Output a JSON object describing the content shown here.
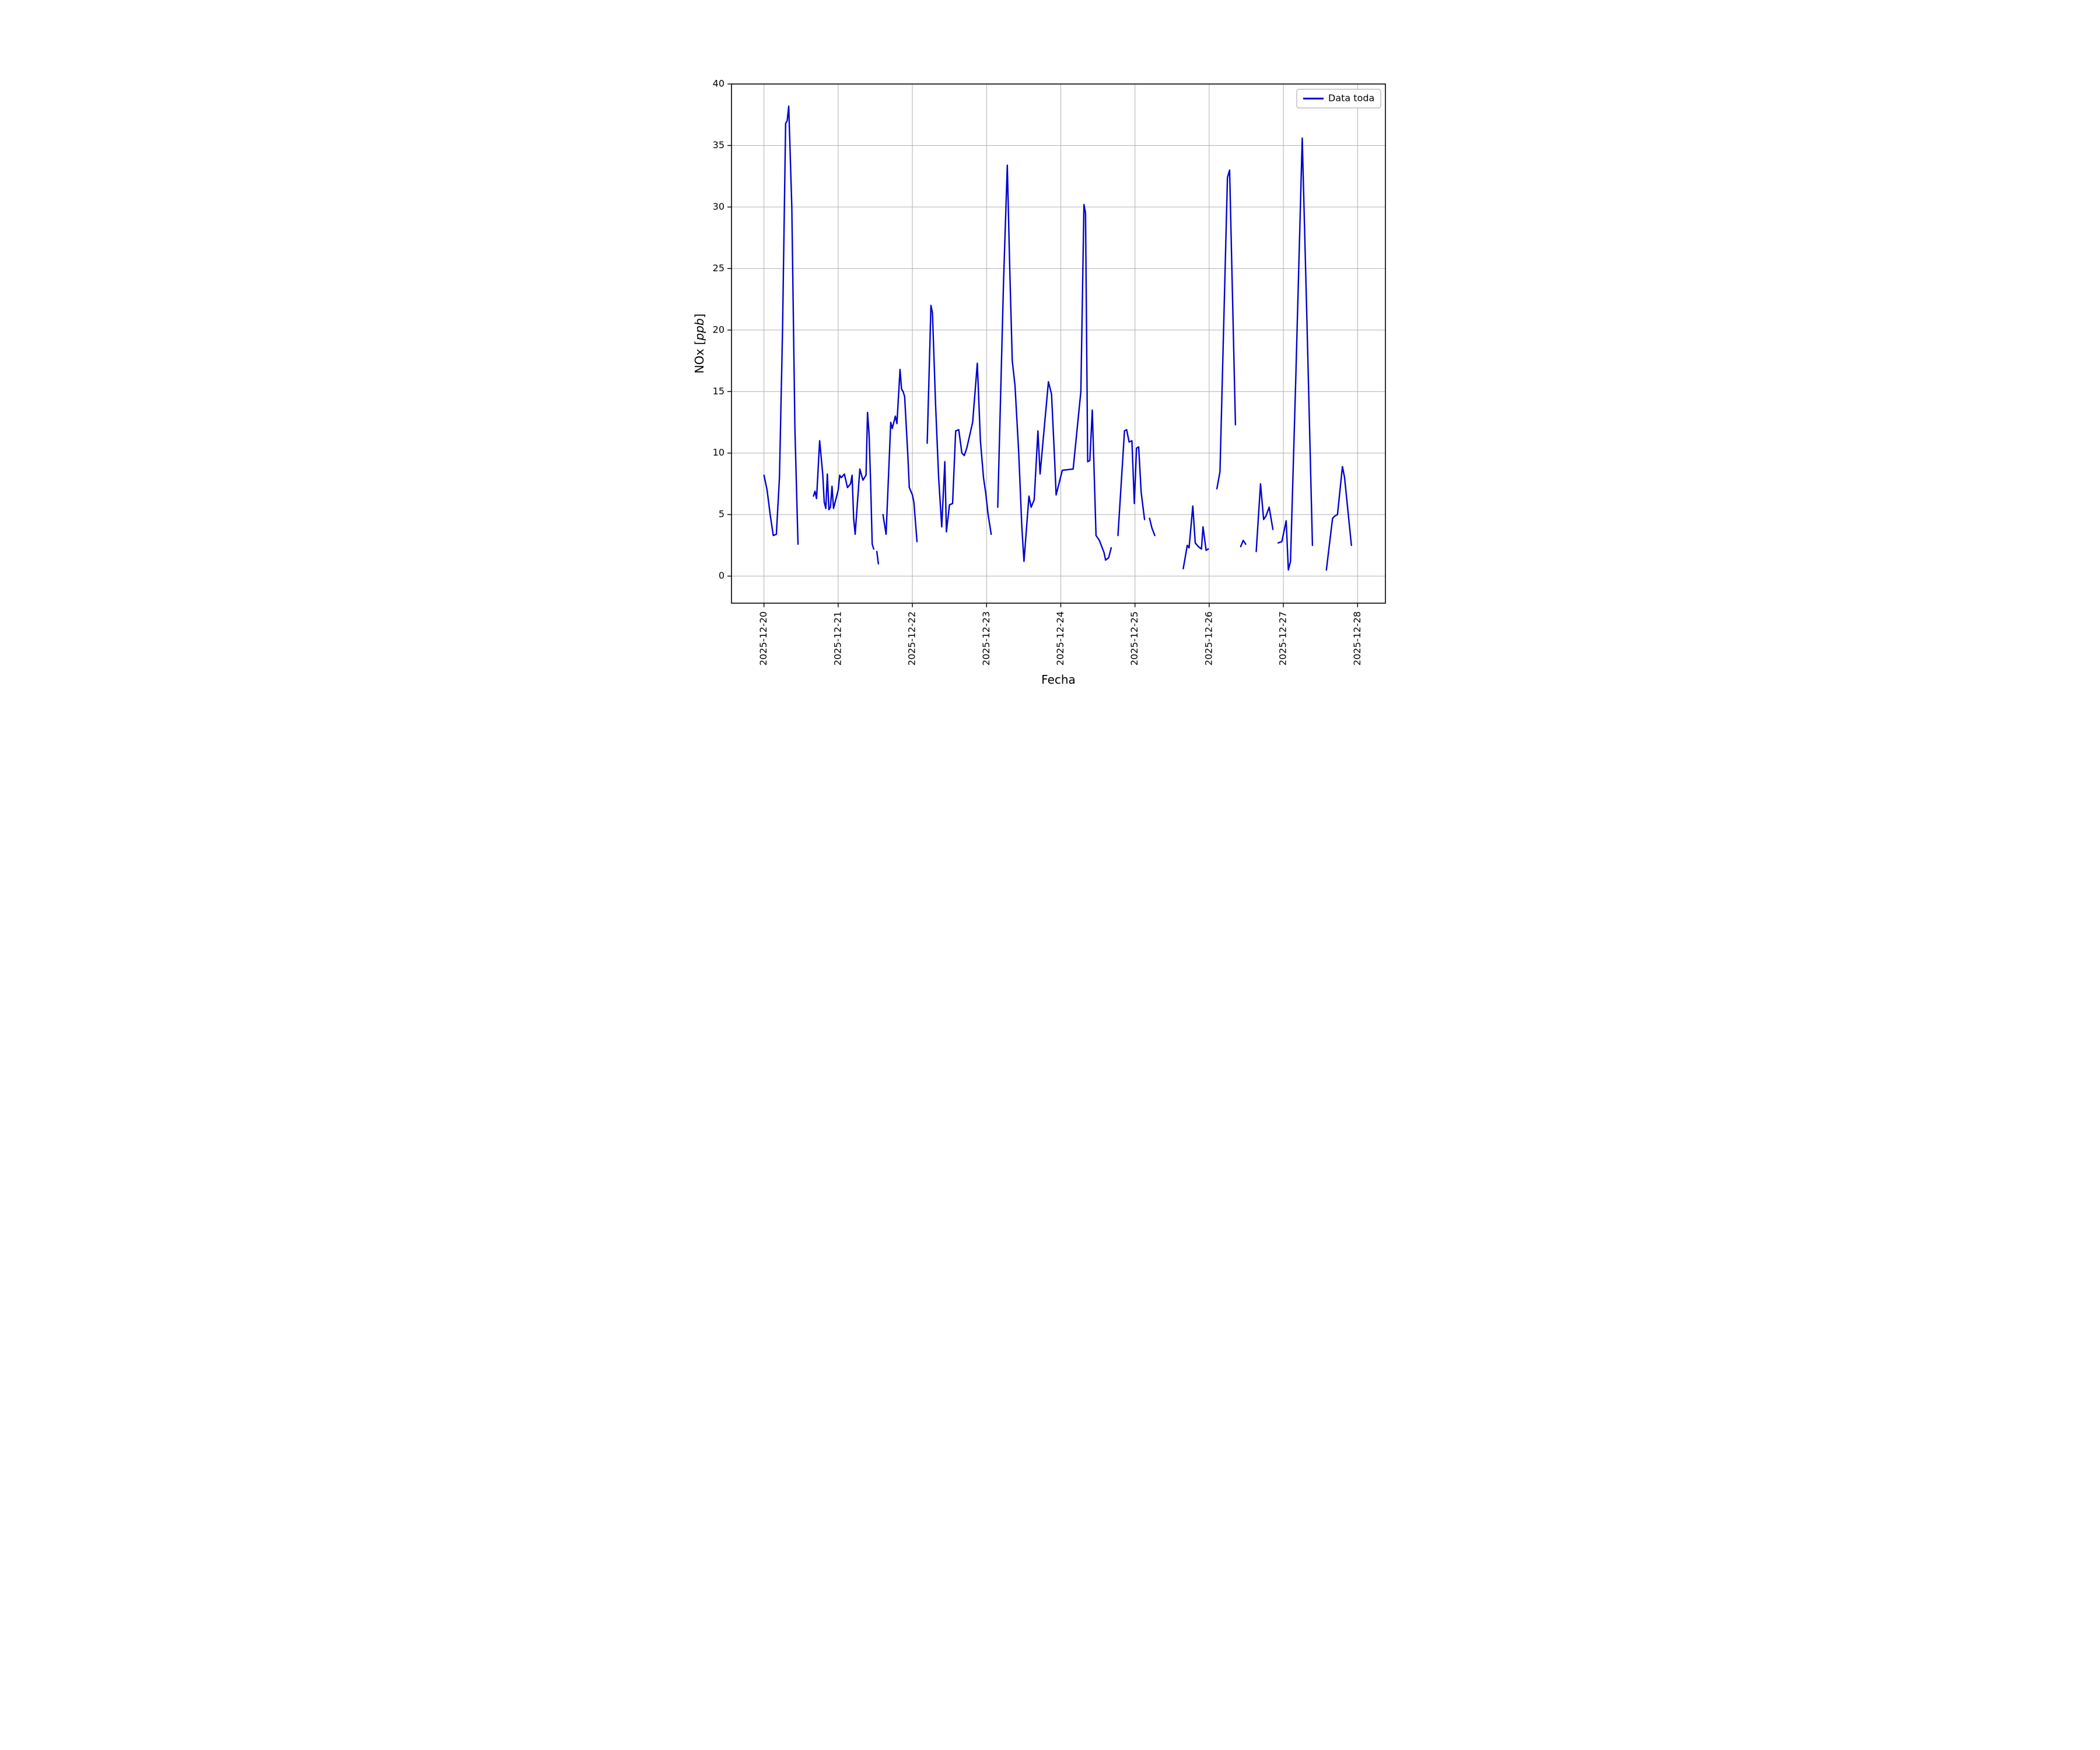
{
  "chart_data": {
    "type": "line",
    "title": "",
    "xlabel": "Fecha",
    "ylabel_prefix": "NOx [",
    "ylabel_italic": "ppb",
    "ylabel_suffix": "]",
    "legend": {
      "position": "upper right",
      "entries": [
        {
          "label": "Data toda",
          "color": "#0000cd"
        }
      ]
    },
    "grid": true,
    "grid_color": "#b0b0b0",
    "axes_edge_color": "#000000",
    "line_color": "#0000cd",
    "x_tick_labels": [
      "2025-12-20",
      "2025-12-21",
      "2025-12-22",
      "2025-12-23",
      "2025-12-24",
      "2025-12-25",
      "2025-12-26",
      "2025-12-27",
      "2025-12-28"
    ],
    "x_tick_hours": [
      0,
      24,
      48,
      72,
      96,
      120,
      144,
      168,
      192
    ],
    "y_ticks": [
      0,
      5,
      10,
      15,
      20,
      25,
      30,
      35,
      40
    ],
    "xlim_hours": [
      -10.5,
      201
    ],
    "ylim": [
      -2.2,
      40
    ],
    "x_unit": "hours since 2025-12-20 00:00",
    "series": [
      {
        "name": "Data toda",
        "color": "#0000cd",
        "points": [
          [
            0,
            8.2
          ],
          [
            1,
            7.0
          ],
          [
            2,
            5.0
          ],
          [
            3,
            3.3
          ],
          [
            4,
            3.4
          ],
          [
            5,
            8.0
          ],
          [
            6,
            20.0
          ],
          [
            7,
            36.8
          ],
          [
            7.5,
            37.0
          ],
          [
            8,
            38.2
          ],
          [
            9,
            30.0
          ],
          [
            10,
            12.0
          ],
          [
            11,
            2.6
          ],
          null,
          [
            16,
            6.5
          ],
          [
            16.5,
            6.9
          ],
          [
            17,
            6.3
          ],
          [
            18,
            11.0
          ],
          [
            19,
            8.3
          ],
          [
            19.5,
            6.0
          ],
          [
            20,
            5.5
          ],
          [
            20.5,
            8.3
          ],
          [
            21,
            5.4
          ],
          [
            21.5,
            5.6
          ],
          [
            22,
            7.3
          ],
          [
            22.5,
            5.5
          ],
          [
            23,
            6.0
          ],
          [
            24,
            7.0
          ],
          [
            24.5,
            8.2
          ],
          [
            25,
            8.0
          ],
          [
            26,
            8.3
          ],
          [
            27,
            7.2
          ],
          [
            28,
            7.5
          ],
          [
            28.5,
            8.2
          ],
          [
            29,
            4.7
          ],
          [
            29.5,
            3.4
          ],
          [
            30,
            5.2
          ],
          [
            31,
            8.7
          ],
          [
            32,
            7.8
          ],
          [
            33,
            8.2
          ],
          [
            33.5,
            13.3
          ],
          [
            34,
            11.5
          ],
          [
            34.5,
            7.6
          ],
          [
            35,
            2.6
          ],
          [
            35.5,
            2.2
          ],
          null,
          [
            36.5,
            2.0
          ],
          [
            37,
            1.0
          ],
          null,
          [
            38.5,
            5.0
          ],
          [
            39.5,
            3.4
          ],
          [
            41,
            12.5
          ],
          [
            41.5,
            12.0
          ],
          [
            42.5,
            13.0
          ],
          [
            43,
            12.4
          ],
          [
            44,
            16.8
          ],
          [
            44.5,
            15.2
          ],
          [
            45,
            15.0
          ],
          [
            45.5,
            14.6
          ],
          [
            46.5,
            10.0
          ],
          [
            47,
            7.2
          ],
          [
            48,
            6.6
          ],
          [
            48.5,
            6.0
          ],
          [
            49.5,
            2.8
          ],
          null,
          [
            52.8,
            10.8
          ],
          [
            54,
            22.0
          ],
          [
            54.5,
            21.4
          ],
          [
            55.5,
            14.0
          ],
          [
            56.5,
            8.0
          ],
          [
            57.5,
            4.0
          ],
          [
            58.5,
            9.3
          ],
          [
            59,
            3.6
          ],
          [
            60,
            5.8
          ],
          [
            61,
            5.9
          ],
          [
            62,
            11.8
          ],
          [
            63,
            11.9
          ],
          [
            64,
            10.0
          ],
          [
            64.8,
            9.8
          ],
          [
            65.6,
            10.4
          ],
          [
            67.5,
            12.5
          ],
          [
            69,
            17.3
          ],
          [
            70,
            11.0
          ],
          [
            71,
            8.0
          ],
          [
            71.7,
            6.8
          ],
          [
            72.5,
            5.0
          ],
          [
            73.5,
            3.4
          ],
          null,
          [
            75.6,
            5.6
          ],
          [
            77.5,
            24.0
          ],
          [
            78.7,
            33.4
          ],
          [
            79.5,
            25.0
          ],
          [
            80.3,
            17.5
          ],
          [
            81.2,
            15.5
          ],
          [
            82.4,
            10.0
          ],
          [
            83.4,
            4.0
          ],
          [
            84.1,
            1.2
          ],
          [
            85.7,
            6.5
          ],
          [
            86.4,
            5.6
          ],
          [
            87.4,
            6.2
          ],
          [
            88.6,
            11.8
          ],
          [
            89.3,
            8.3
          ],
          [
            92,
            15.8
          ],
          [
            93,
            14.8
          ],
          [
            94,
            9.5
          ],
          [
            94.5,
            6.6
          ],
          [
            95.7,
            7.8
          ],
          [
            96.5,
            8.6
          ],
          [
            100,
            8.7
          ],
          [
            102.5,
            15.0
          ],
          [
            103.5,
            30.2
          ],
          [
            104,
            29.5
          ],
          [
            104.7,
            9.3
          ],
          [
            105.4,
            9.4
          ],
          [
            106.2,
            13.5
          ],
          [
            107.4,
            3.3
          ],
          [
            108.5,
            2.9
          ],
          [
            110,
            1.9
          ],
          [
            110.5,
            1.3
          ],
          [
            111.5,
            1.5
          ],
          [
            112.3,
            2.3
          ],
          null,
          [
            114.5,
            3.3
          ],
          [
            116.6,
            11.8
          ],
          [
            117.3,
            11.9
          ],
          [
            118.1,
            10.9
          ],
          [
            119,
            11.0
          ],
          [
            119.8,
            5.9
          ],
          [
            120.5,
            10.4
          ],
          [
            121.2,
            10.5
          ],
          [
            122,
            6.8
          ],
          [
            123.1,
            4.6
          ],
          null,
          [
            124.7,
            4.7
          ],
          [
            125.5,
            3.9
          ],
          [
            126.4,
            3.3
          ],
          null,
          [
            135.6,
            0.6
          ],
          [
            136.9,
            2.5
          ],
          [
            137.5,
            2.3
          ],
          [
            138.7,
            5.7
          ],
          [
            139.5,
            2.7
          ],
          [
            140.5,
            2.4
          ],
          [
            141.5,
            2.2
          ],
          [
            142,
            4.0
          ],
          [
            143,
            2.1
          ],
          [
            143.7,
            2.2
          ],
          null,
          [
            146.5,
            7.1
          ],
          [
            147.5,
            8.5
          ],
          [
            149.9,
            32.4
          ],
          [
            150.6,
            33.0
          ],
          [
            152.5,
            12.3
          ],
          null,
          [
            154.2,
            2.4
          ],
          [
            155,
            2.9
          ],
          [
            155.8,
            2.6
          ],
          null,
          [
            159.2,
            2.0
          ],
          [
            160.6,
            7.5
          ],
          [
            161.6,
            4.6
          ],
          [
            162.4,
            4.9
          ],
          [
            163.4,
            5.6
          ],
          [
            164.6,
            3.8
          ],
          null,
          [
            166.3,
            2.7
          ],
          [
            167.5,
            2.8
          ],
          [
            168.9,
            4.5
          ],
          [
            169.6,
            0.5
          ],
          [
            170.3,
            1.2
          ],
          [
            172,
            16.0
          ],
          [
            174.1,
            35.6
          ],
          [
            175.5,
            22.0
          ],
          [
            177.4,
            2.5
          ],
          null,
          [
            181.9,
            0.5
          ],
          [
            183.9,
            4.7
          ],
          [
            184.7,
            4.9
          ],
          [
            185.5,
            5.0
          ],
          [
            187.1,
            8.9
          ],
          [
            187.8,
            8.0
          ],
          [
            190,
            2.5
          ]
        ]
      }
    ]
  }
}
